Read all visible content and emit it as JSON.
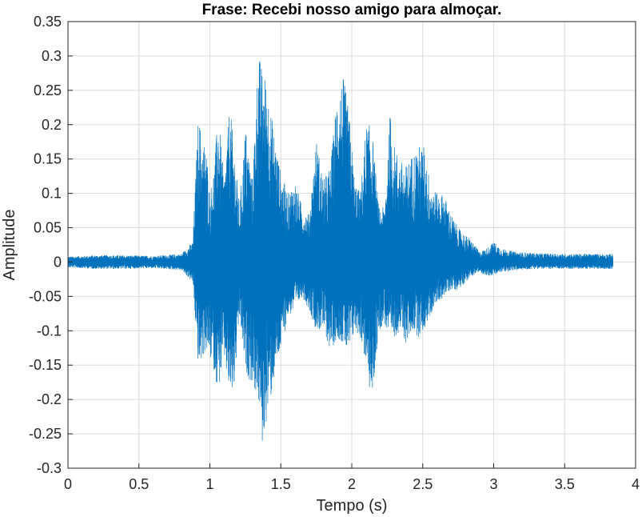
{
  "chart_data": {
    "type": "line",
    "title": "Frase: Recebi nosso amigo para almoçar.",
    "xlabel": "Tempo (s)",
    "ylabel": "Amplitude",
    "xlim": [
      0,
      4
    ],
    "ylim": [
      -0.3,
      0.35
    ],
    "xticks": [
      "0",
      "0.5",
      "1",
      "1.5",
      "2",
      "2.5",
      "3",
      "3.5",
      "4"
    ],
    "yticks": [
      "0.35",
      "0.3",
      "0.25",
      "0.2",
      "0.15",
      "0.1",
      "0.05",
      "0",
      "-0.05",
      "-0.1",
      "-0.15",
      "-0.2",
      "-0.25",
      "-0.3"
    ],
    "grid": true,
    "series": [
      {
        "color": "#0072BD",
        "x": [
          0,
          0.2,
          0.4,
          0.6,
          0.8,
          0.88,
          0.92,
          0.95,
          0.97,
          1.0,
          1.03,
          1.06,
          1.1,
          1.14,
          1.17,
          1.21,
          1.25,
          1.3,
          1.34,
          1.37,
          1.4,
          1.43,
          1.46,
          1.5,
          1.55,
          1.6,
          1.65,
          1.7,
          1.75,
          1.8,
          1.85,
          1.9,
          1.94,
          1.98,
          2.02,
          2.06,
          2.1,
          2.14,
          2.19,
          2.23,
          2.27,
          2.3,
          2.34,
          2.38,
          2.43,
          2.47,
          2.51,
          2.55,
          2.6,
          2.65,
          2.7,
          2.75,
          2.8,
          2.85,
          2.9,
          2.95,
          3.0,
          3.05,
          3.15,
          3.3,
          3.5,
          3.7,
          3.84
        ],
        "upper": [
          0.008,
          0.01,
          0.01,
          0.009,
          0.012,
          0.03,
          0.22,
          0.17,
          0.18,
          0.1,
          0.14,
          0.22,
          0.12,
          0.23,
          0.17,
          0.08,
          0.2,
          0.12,
          0.31,
          0.28,
          0.27,
          0.22,
          0.18,
          0.13,
          0.1,
          0.12,
          0.08,
          0.07,
          0.18,
          0.12,
          0.14,
          0.26,
          0.27,
          0.22,
          0.12,
          0.1,
          0.2,
          0.2,
          0.08,
          0.08,
          0.22,
          0.17,
          0.15,
          0.14,
          0.16,
          0.17,
          0.17,
          0.12,
          0.1,
          0.1,
          0.07,
          0.05,
          0.04,
          0.03,
          0.015,
          0.02,
          0.03,
          0.02,
          0.015,
          0.013,
          0.012,
          0.012,
          0.012
        ],
        "lower": [
          -0.008,
          -0.01,
          -0.01,
          -0.009,
          -0.012,
          -0.03,
          -0.16,
          -0.14,
          -0.13,
          -0.14,
          -0.16,
          -0.19,
          -0.14,
          -0.2,
          -0.19,
          -0.08,
          -0.16,
          -0.18,
          -0.2,
          -0.27,
          -0.23,
          -0.2,
          -0.16,
          -0.13,
          -0.08,
          -0.07,
          -0.05,
          -0.07,
          -0.1,
          -0.1,
          -0.13,
          -0.11,
          -0.12,
          -0.14,
          -0.1,
          -0.11,
          -0.15,
          -0.21,
          -0.1,
          -0.09,
          -0.12,
          -0.11,
          -0.1,
          -0.12,
          -0.1,
          -0.11,
          -0.1,
          -0.08,
          -0.06,
          -0.05,
          -0.04,
          -0.04,
          -0.03,
          -0.02,
          -0.015,
          -0.02,
          -0.02,
          -0.015,
          -0.012,
          -0.01,
          -0.01,
          -0.01,
          -0.01
        ]
      }
    ]
  }
}
